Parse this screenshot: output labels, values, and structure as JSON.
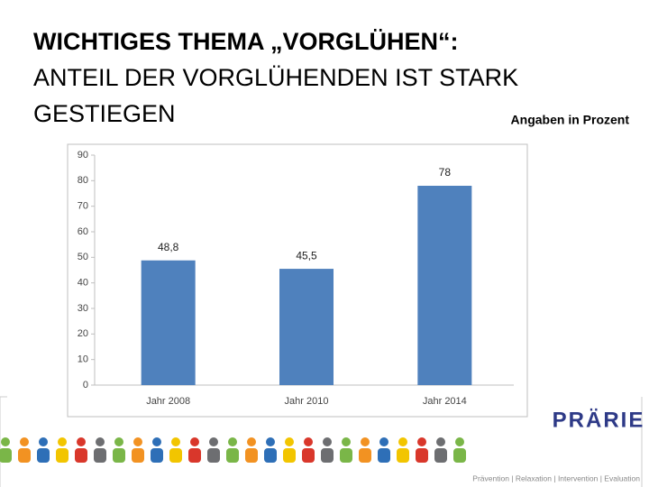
{
  "chart_data": {
    "type": "bar",
    "title_lines": [
      "WICHTIGES THEMA „VORGLÜHEN“:",
      "ANTEIL DER VORGLÜHENDEN IST STARK",
      "GESTIEGEN"
    ],
    "subtitle": "Angaben in Prozent",
    "categories": [
      "Jahr 2008",
      "Jahr 2010",
      "Jahr 2014"
    ],
    "values": [
      48.8,
      45.5,
      78
    ],
    "value_labels": [
      "48,8",
      "45,5",
      "78"
    ],
    "color": "#4f81bd",
    "ylim": [
      0,
      90
    ],
    "yticks": [
      0,
      10,
      20,
      30,
      40,
      50,
      60,
      70,
      80,
      90
    ],
    "grid": false
  },
  "footer": {
    "logo": "PRÄRIE",
    "tagline": "Prävention | Relaxation | Intervention | Evaluation"
  }
}
